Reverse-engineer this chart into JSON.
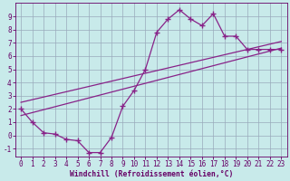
{
  "xlabel": "Windchill (Refroidissement éolien,°C)",
  "bg_color": "#c8eaea",
  "grid_color": "#99aabb",
  "line_color": "#882288",
  "x_hours": [
    0,
    1,
    2,
    3,
    4,
    5,
    6,
    7,
    8,
    9,
    10,
    11,
    12,
    13,
    14,
    15,
    16,
    17,
    18,
    19,
    20,
    21,
    22,
    23
  ],
  "y_windchill": [
    2.0,
    1.0,
    0.2,
    0.1,
    -0.3,
    -0.4,
    -1.3,
    -1.3,
    -0.15,
    2.2,
    3.4,
    5.0,
    7.8,
    8.8,
    9.5,
    8.8,
    8.3,
    9.2,
    7.5,
    7.5,
    6.5,
    6.5,
    6.5,
    6.5
  ],
  "line1_x": [
    0,
    23
  ],
  "line1_y": [
    1.5,
    6.6
  ],
  "line2_x": [
    0,
    23
  ],
  "line2_y": [
    2.5,
    7.1
  ],
  "xlim": [
    -0.5,
    23.5
  ],
  "ylim": [
    -1.6,
    10.0
  ],
  "yticks": [
    -1,
    0,
    1,
    2,
    3,
    4,
    5,
    6,
    7,
    8,
    9
  ],
  "xticks": [
    0,
    1,
    2,
    3,
    4,
    5,
    6,
    7,
    8,
    9,
    10,
    11,
    12,
    13,
    14,
    15,
    16,
    17,
    18,
    19,
    20,
    21,
    22,
    23
  ],
  "tick_color": "#660066",
  "spine_color": "#660066",
  "label_fontsize": 5.8,
  "tick_fontsize": 5.5
}
